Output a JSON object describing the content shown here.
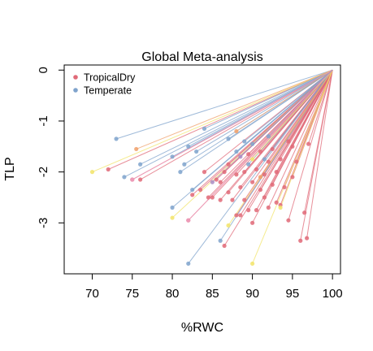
{
  "chart_data": {
    "type": "scatter",
    "title": "Global Meta-analysis",
    "xlabel": "%RWC",
    "ylabel": "TLP",
    "xlim": [
      66.5,
      101
    ],
    "ylim": [
      -4,
      0.1
    ],
    "xticks": [
      70,
      75,
      80,
      85,
      90,
      95,
      100
    ],
    "yticks": [
      0,
      -1,
      -2,
      -3
    ],
    "legend_position": "top-left",
    "origin": {
      "x": 100,
      "y": 0
    },
    "legend": [
      {
        "label": "TropicalDry",
        "color": "#e06a78"
      },
      {
        "label": "Temperate",
        "color": "#7fa3cc"
      }
    ],
    "series": [
      {
        "name": "TropicalDry",
        "color": "#e06a78",
        "points": [
          {
            "x": 72.0,
            "y": -1.95
          },
          {
            "x": 75.0,
            "y": -2.15
          },
          {
            "x": 76.0,
            "y": -2.15
          },
          {
            "x": 82.0,
            "y": -2.95
          },
          {
            "x": 82.5,
            "y": -2.45
          },
          {
            "x": 83.5,
            "y": -2.35
          },
          {
            "x": 84.0,
            "y": -2.0
          },
          {
            "x": 84.5,
            "y": -2.5
          },
          {
            "x": 85.0,
            "y": -2.5
          },
          {
            "x": 85.5,
            "y": -2.15
          },
          {
            "x": 86.0,
            "y": -2.55
          },
          {
            "x": 86.0,
            "y": -2.2
          },
          {
            "x": 86.5,
            "y": -2.0
          },
          {
            "x": 86.5,
            "y": -3.45
          },
          {
            "x": 87.0,
            "y": -2.4
          },
          {
            "x": 87.0,
            "y": -1.85
          },
          {
            "x": 87.5,
            "y": -2.55
          },
          {
            "x": 88.0,
            "y": -2.05
          },
          {
            "x": 88.0,
            "y": -2.85
          },
          {
            "x": 88.5,
            "y": -2.3
          },
          {
            "x": 88.5,
            "y": -2.85
          },
          {
            "x": 89.0,
            "y": -2.0
          },
          {
            "x": 89.0,
            "y": -2.55
          },
          {
            "x": 89.5,
            "y": -2.75
          },
          {
            "x": 89.5,
            "y": -1.65
          },
          {
            "x": 90.0,
            "y": -3.0
          },
          {
            "x": 90.0,
            "y": -2.2
          },
          {
            "x": 90.5,
            "y": -1.95
          },
          {
            "x": 90.5,
            "y": -2.75
          },
          {
            "x": 91.0,
            "y": -1.6
          },
          {
            "x": 91.0,
            "y": -2.35
          },
          {
            "x": 91.5,
            "y": -2.5
          },
          {
            "x": 91.5,
            "y": -2.05
          },
          {
            "x": 92.0,
            "y": -1.8
          },
          {
            "x": 92.0,
            "y": -2.7
          },
          {
            "x": 92.5,
            "y": -2.25
          },
          {
            "x": 92.5,
            "y": -1.55
          },
          {
            "x": 93.0,
            "y": -2.0
          },
          {
            "x": 93.0,
            "y": -2.6
          },
          {
            "x": 93.5,
            "y": -1.75
          },
          {
            "x": 93.5,
            "y": -2.65
          },
          {
            "x": 94.0,
            "y": -2.3
          },
          {
            "x": 94.5,
            "y": -1.4
          },
          {
            "x": 94.5,
            "y": -2.95
          },
          {
            "x": 95.0,
            "y": -1.5
          },
          {
            "x": 95.0,
            "y": -2.1
          },
          {
            "x": 95.5,
            "y": -1.8
          },
          {
            "x": 96.0,
            "y": -3.35
          },
          {
            "x": 96.5,
            "y": -2.8
          },
          {
            "x": 96.8,
            "y": -3.3
          },
          {
            "x": 97.0,
            "y": -1.45
          }
        ]
      },
      {
        "name": "Temperate",
        "color": "#7fa3cc",
        "points": [
          {
            "x": 73.0,
            "y": -1.35
          },
          {
            "x": 74.0,
            "y": -2.1
          },
          {
            "x": 76.0,
            "y": -1.85
          },
          {
            "x": 80.0,
            "y": -1.7
          },
          {
            "x": 80.0,
            "y": -2.7
          },
          {
            "x": 81.0,
            "y": -2.0
          },
          {
            "x": 81.5,
            "y": -1.85
          },
          {
            "x": 82.0,
            "y": -1.5
          },
          {
            "x": 82.0,
            "y": -3.8
          },
          {
            "x": 82.5,
            "y": -2.35
          },
          {
            "x": 83.0,
            "y": -1.6
          },
          {
            "x": 84.0,
            "y": -1.15
          },
          {
            "x": 86.0,
            "y": -3.35
          },
          {
            "x": 87.0,
            "y": -1.35
          },
          {
            "x": 88.0,
            "y": -1.6
          },
          {
            "x": 89.0,
            "y": -1.4
          },
          {
            "x": 89.5,
            "y": -1.85
          },
          {
            "x": 90.0,
            "y": -1.45
          },
          {
            "x": 91.5,
            "y": -1.75
          },
          {
            "x": 92.0,
            "y": -1.3
          }
        ]
      },
      {
        "name": "",
        "color": "#f2e46a",
        "points": [
          {
            "x": 70.0,
            "y": -2.0
          },
          {
            "x": 80.0,
            "y": -2.9
          },
          {
            "x": 87.0,
            "y": -3.05
          },
          {
            "x": 90.0,
            "y": -3.8
          },
          {
            "x": 90.0,
            "y": -1.75
          },
          {
            "x": 93.5,
            "y": -2.7
          }
        ]
      },
      {
        "name": "",
        "color": "#f0a06a",
        "points": [
          {
            "x": 75.5,
            "y": -1.55
          },
          {
            "x": 88.0,
            "y": -1.2
          },
          {
            "x": 91.0,
            "y": -2.1
          }
        ]
      },
      {
        "name": "",
        "color": "#ef9fc0",
        "points": [
          {
            "x": 75.0,
            "y": -2.15
          },
          {
            "x": 82.0,
            "y": -2.95
          }
        ]
      },
      {
        "name": "",
        "color": "#a98cc4",
        "points": [
          {
            "x": 85.0,
            "y": -2.2
          },
          {
            "x": 88.5,
            "y": -1.7
          }
        ]
      }
    ]
  }
}
